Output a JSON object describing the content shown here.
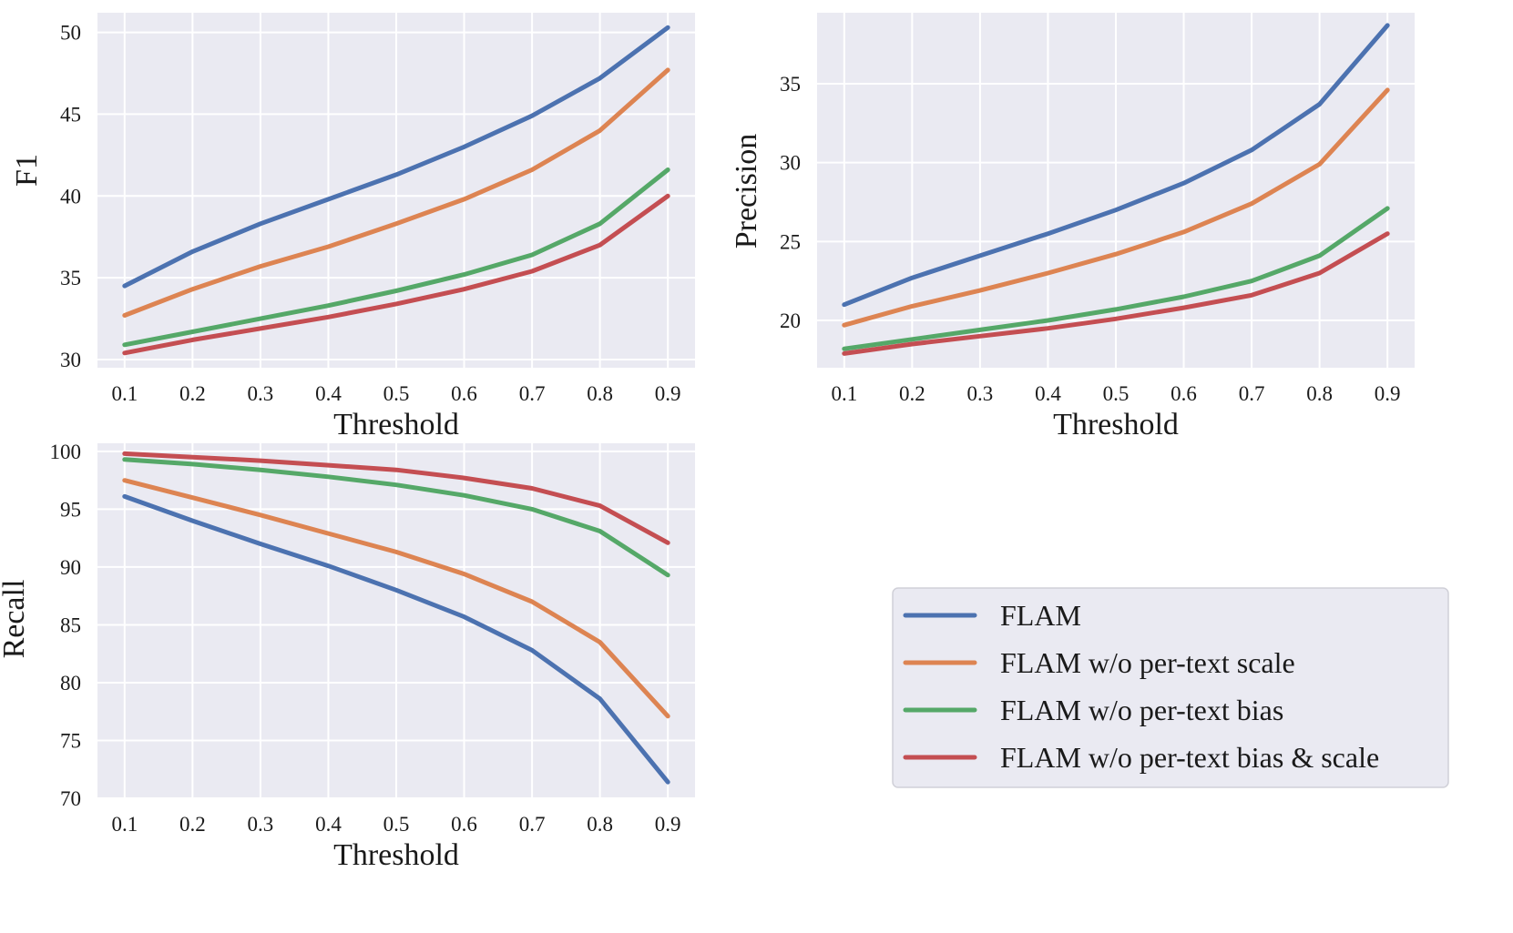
{
  "colors": {
    "FLAM": "#4c72b0",
    "FLAM w/o per-text scale": "#dd8452",
    "FLAM w/o per-text bias": "#55a868",
    "FLAM w/o per-text bias & scale": "#c44e52"
  },
  "legend": {
    "placement": "lower-right",
    "entries": [
      "FLAM",
      "FLAM w/o per-text scale",
      "FLAM w/o per-text bias",
      "FLAM w/o per-text bias & scale"
    ]
  },
  "chart_data": [
    {
      "id": "f1",
      "type": "line",
      "title": "",
      "xlabel": "Threshold",
      "ylabel": "F1",
      "x": [
        0.1,
        0.2,
        0.3,
        0.4,
        0.5,
        0.6,
        0.7,
        0.8,
        0.9
      ],
      "xticks": [
        "0.1",
        "0.2",
        "0.3",
        "0.4",
        "0.5",
        "0.6",
        "0.7",
        "0.8",
        "0.9"
      ],
      "yticks": [
        30,
        35,
        40,
        45,
        50
      ],
      "ylim": [
        29.5,
        51.2
      ],
      "xlim": [
        0.06,
        0.94
      ],
      "grid": true,
      "series": [
        {
          "name": "FLAM",
          "values": [
            34.5,
            36.6,
            38.3,
            39.8,
            41.3,
            43.0,
            44.9,
            47.2,
            50.3
          ]
        },
        {
          "name": "FLAM w/o per-text scale",
          "values": [
            32.7,
            34.3,
            35.7,
            36.9,
            38.3,
            39.8,
            41.6,
            44.0,
            47.7
          ]
        },
        {
          "name": "FLAM w/o per-text bias",
          "values": [
            30.9,
            31.7,
            32.5,
            33.3,
            34.2,
            35.2,
            36.4,
            38.3,
            41.6
          ]
        },
        {
          "name": "FLAM w/o per-text bias & scale",
          "values": [
            30.4,
            31.2,
            31.9,
            32.6,
            33.4,
            34.3,
            35.4,
            37.0,
            40.0
          ]
        }
      ]
    },
    {
      "id": "precision",
      "type": "line",
      "title": "",
      "xlabel": "Threshold",
      "ylabel": "Precision",
      "x": [
        0.1,
        0.2,
        0.3,
        0.4,
        0.5,
        0.6,
        0.7,
        0.8,
        0.9
      ],
      "xticks": [
        "0.1",
        "0.2",
        "0.3",
        "0.4",
        "0.5",
        "0.6",
        "0.7",
        "0.8",
        "0.9"
      ],
      "yticks": [
        20,
        25,
        30,
        35
      ],
      "ylim": [
        17.0,
        39.5
      ],
      "xlim": [
        0.06,
        0.94
      ],
      "grid": true,
      "series": [
        {
          "name": "FLAM",
          "values": [
            21.0,
            22.7,
            24.1,
            25.5,
            27.0,
            28.7,
            30.8,
            33.7,
            38.7
          ]
        },
        {
          "name": "FLAM w/o per-text scale",
          "values": [
            19.7,
            20.9,
            21.9,
            23.0,
            24.2,
            25.6,
            27.4,
            29.9,
            34.6
          ]
        },
        {
          "name": "FLAM w/o per-text bias",
          "values": [
            18.2,
            18.8,
            19.4,
            20.0,
            20.7,
            21.5,
            22.5,
            24.1,
            27.1
          ]
        },
        {
          "name": "FLAM w/o per-text bias & scale",
          "values": [
            17.9,
            18.5,
            19.0,
            19.5,
            20.1,
            20.8,
            21.6,
            23.0,
            25.5
          ]
        }
      ]
    },
    {
      "id": "recall",
      "type": "line",
      "title": "",
      "xlabel": "Threshold",
      "ylabel": "Recall",
      "x": [
        0.1,
        0.2,
        0.3,
        0.4,
        0.5,
        0.6,
        0.7,
        0.8,
        0.9
      ],
      "xticks": [
        "0.1",
        "0.2",
        "0.3",
        "0.4",
        "0.5",
        "0.6",
        "0.7",
        "0.8",
        "0.9"
      ],
      "yticks": [
        70,
        75,
        80,
        85,
        90,
        95,
        100
      ],
      "ylim": [
        70.0,
        100.7
      ],
      "xlim": [
        0.06,
        0.94
      ],
      "grid": true,
      "series": [
        {
          "name": "FLAM",
          "values": [
            96.1,
            94.0,
            92.0,
            90.1,
            88.0,
            85.7,
            82.8,
            78.6,
            71.4
          ]
        },
        {
          "name": "FLAM w/o per-text scale",
          "values": [
            97.5,
            96.0,
            94.5,
            92.9,
            91.3,
            89.4,
            87.0,
            83.5,
            77.1
          ]
        },
        {
          "name": "FLAM w/o per-text bias",
          "values": [
            99.3,
            98.9,
            98.4,
            97.8,
            97.1,
            96.2,
            95.0,
            93.1,
            89.3
          ]
        },
        {
          "name": "FLAM w/o per-text bias & scale",
          "values": [
            99.8,
            99.5,
            99.2,
            98.8,
            98.4,
            97.7,
            96.8,
            95.3,
            92.1
          ]
        }
      ]
    }
  ]
}
